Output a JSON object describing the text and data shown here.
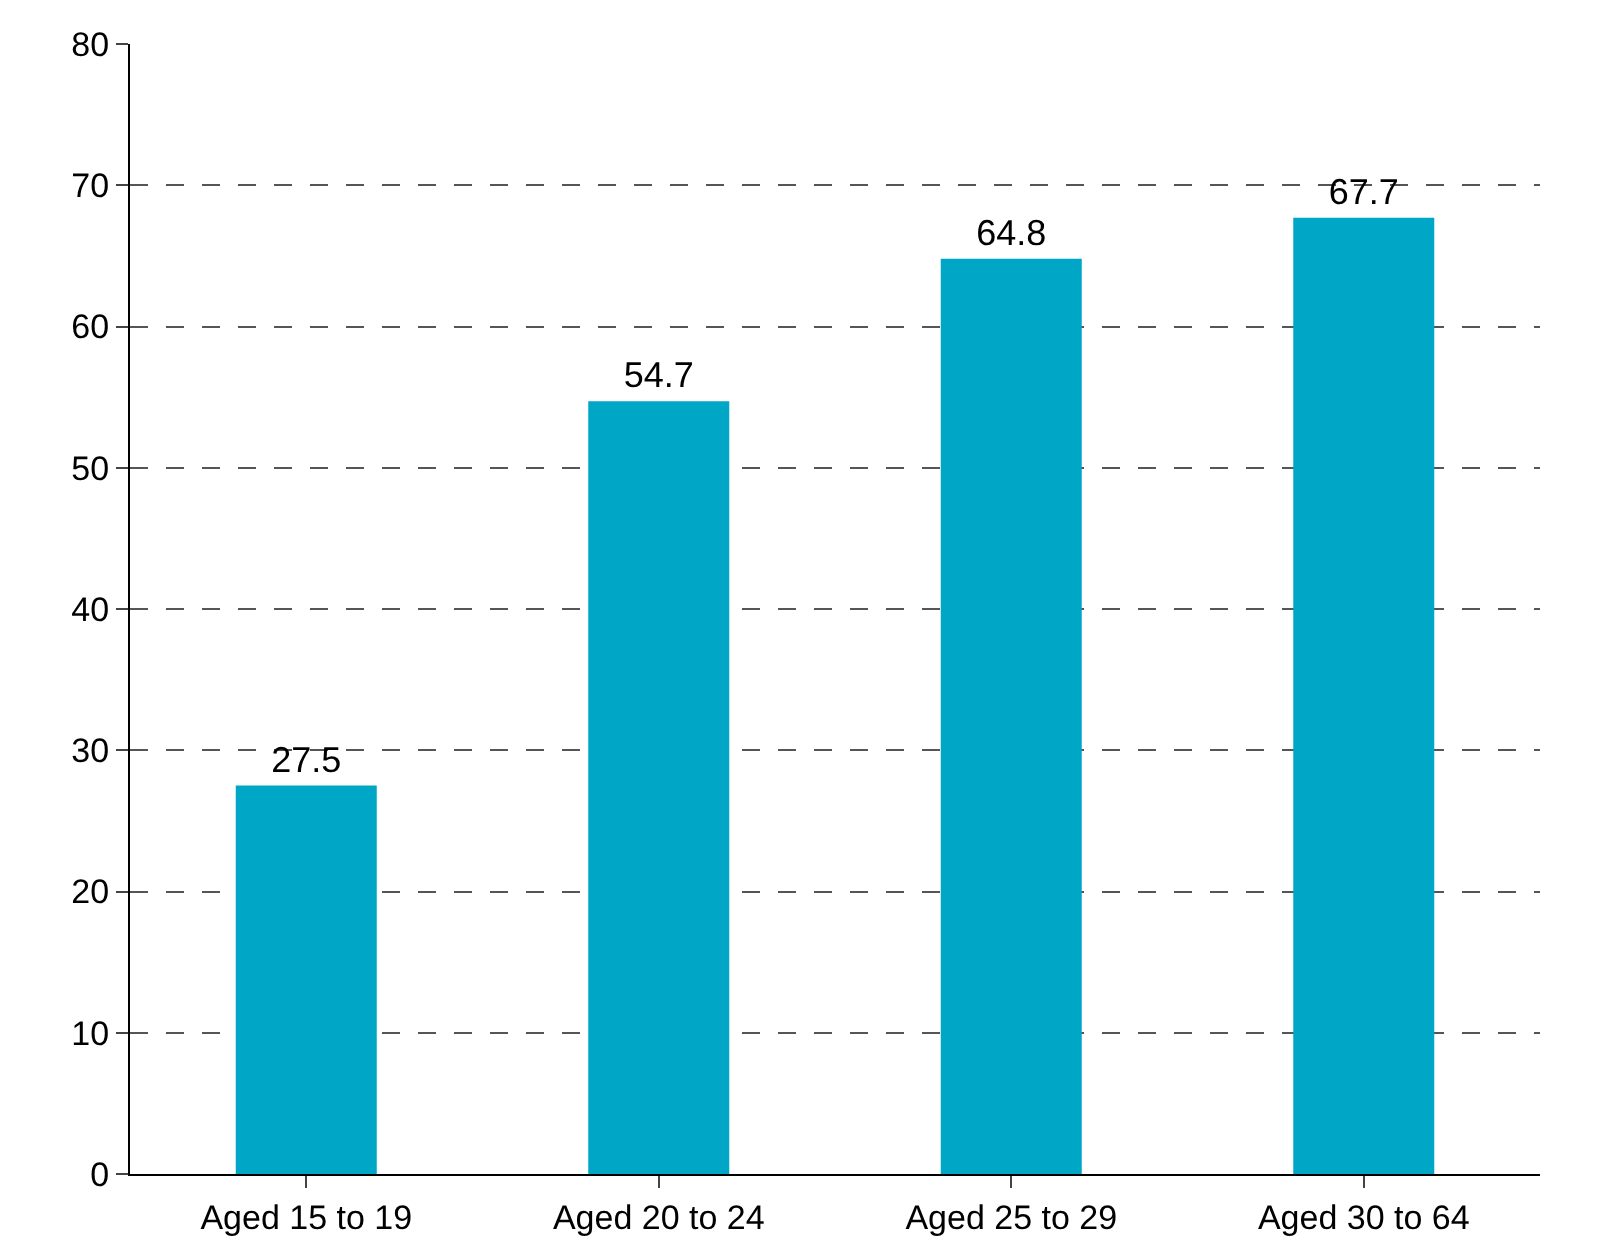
{
  "chart_data": {
    "type": "bar",
    "categories": [
      "Aged 15 to 19",
      "Aged 20 to 24",
      "Aged 25 to 29",
      "Aged 30 to 64"
    ],
    "values": [
      27.5,
      54.7,
      64.8,
      67.7
    ],
    "color": "#00a6c6",
    "ylim": [
      0,
      80
    ],
    "yticks": [
      0,
      10,
      20,
      30,
      40,
      50,
      60,
      70,
      80
    ],
    "grid": "y",
    "data_labels": true
  }
}
